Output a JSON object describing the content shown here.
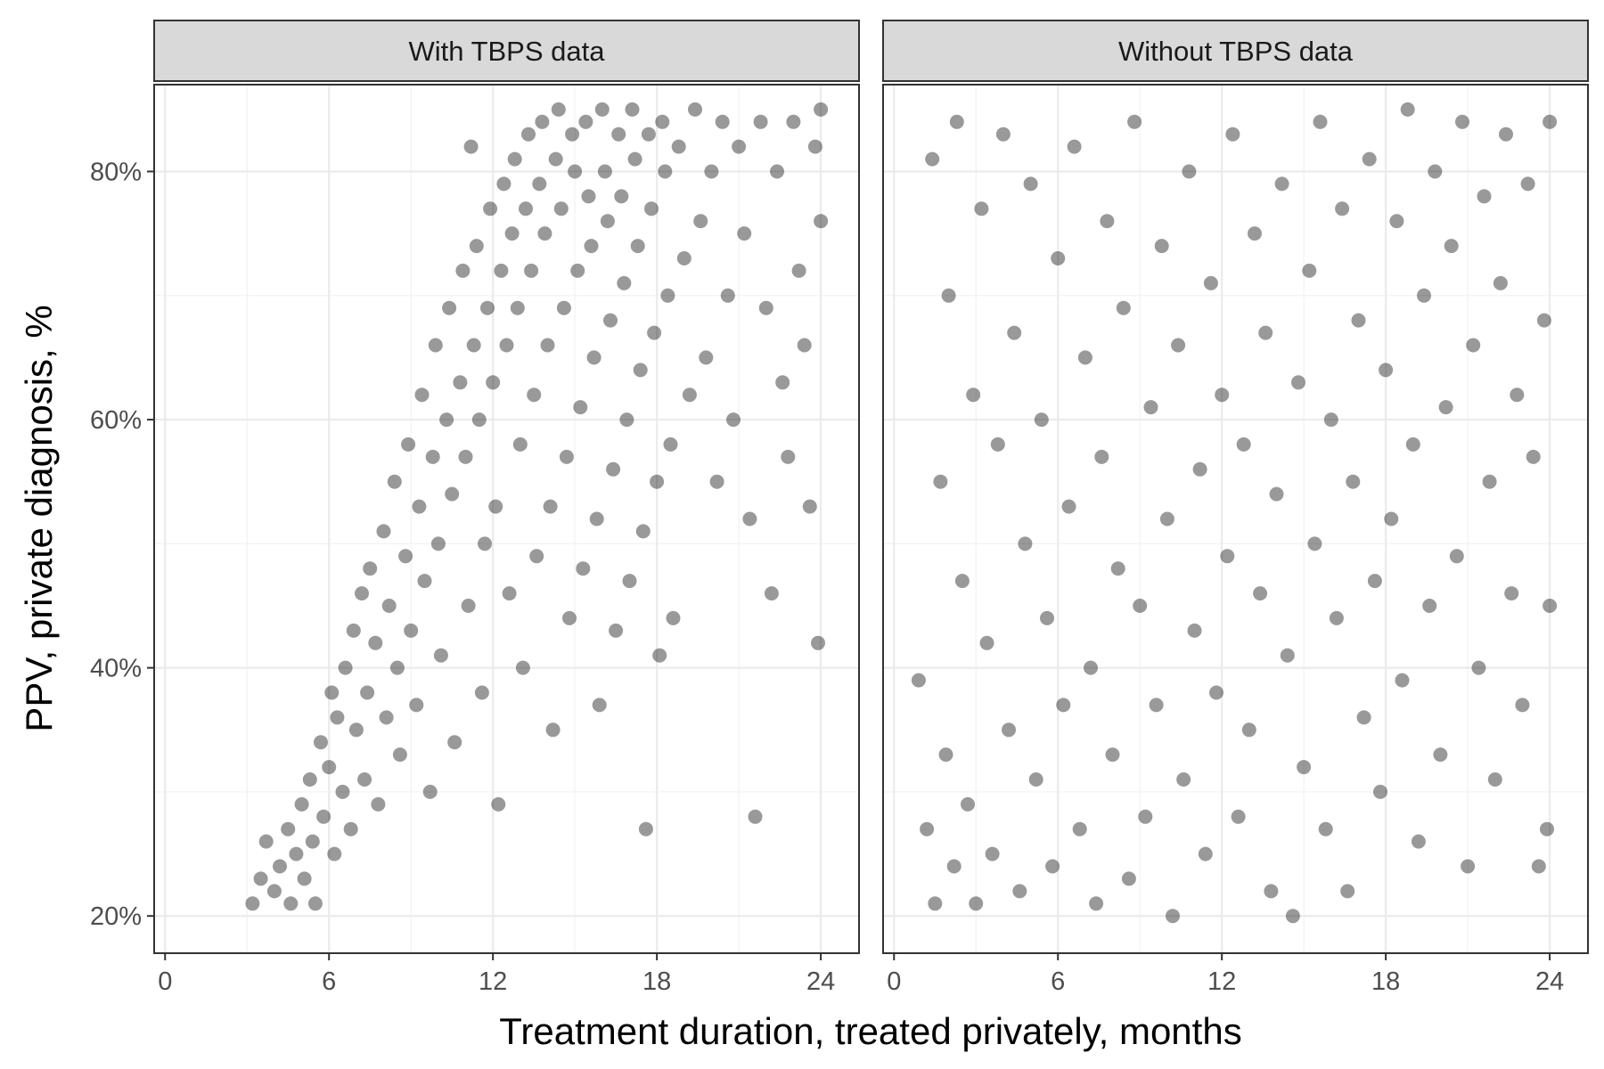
{
  "chart_data": {
    "type": "scatter",
    "xlabel": "Treatment duration, treated privately, months",
    "ylabel": "PPV, private diagnosis, %",
    "xlim": [
      -0.4,
      25.4
    ],
    "ylim": [
      0.17,
      0.87
    ],
    "x_ticks": [
      0,
      6,
      12,
      18,
      24
    ],
    "x_tick_labels": [
      "0",
      "6",
      "12",
      "18",
      "24"
    ],
    "y_ticks": [
      0.2,
      0.4,
      0.6,
      0.8
    ],
    "y_tick_labels": [
      "20%",
      "40%",
      "60%",
      "80%"
    ],
    "grid": true,
    "point_color": "#000000",
    "point_alpha": 0.4,
    "panels": [
      {
        "strip_label": "With TBPS data",
        "points": [
          [
            3.2,
            0.21
          ],
          [
            3.5,
            0.23
          ],
          [
            3.7,
            0.26
          ],
          [
            4.0,
            0.22
          ],
          [
            4.2,
            0.24
          ],
          [
            4.5,
            0.27
          ],
          [
            4.6,
            0.21
          ],
          [
            4.8,
            0.25
          ],
          [
            5.0,
            0.29
          ],
          [
            5.1,
            0.23
          ],
          [
            5.3,
            0.31
          ],
          [
            5.4,
            0.26
          ],
          [
            5.5,
            0.21
          ],
          [
            5.7,
            0.34
          ],
          [
            5.8,
            0.28
          ],
          [
            6.0,
            0.32
          ],
          [
            6.1,
            0.38
          ],
          [
            6.2,
            0.25
          ],
          [
            6.3,
            0.36
          ],
          [
            6.5,
            0.3
          ],
          [
            6.6,
            0.4
          ],
          [
            6.8,
            0.27
          ],
          [
            6.9,
            0.43
          ],
          [
            7.0,
            0.35
          ],
          [
            7.2,
            0.46
          ],
          [
            7.3,
            0.31
          ],
          [
            7.4,
            0.38
          ],
          [
            7.5,
            0.48
          ],
          [
            7.7,
            0.42
          ],
          [
            7.8,
            0.29
          ],
          [
            8.0,
            0.51
          ],
          [
            8.1,
            0.36
          ],
          [
            8.2,
            0.45
          ],
          [
            8.4,
            0.55
          ],
          [
            8.5,
            0.4
          ],
          [
            8.6,
            0.33
          ],
          [
            8.8,
            0.49
          ],
          [
            8.9,
            0.58
          ],
          [
            9.0,
            0.43
          ],
          [
            9.2,
            0.37
          ],
          [
            9.3,
            0.53
          ],
          [
            9.4,
            0.62
          ],
          [
            9.5,
            0.47
          ],
          [
            9.7,
            0.3
          ],
          [
            9.8,
            0.57
          ],
          [
            9.9,
            0.66
          ],
          [
            10.0,
            0.5
          ],
          [
            10.1,
            0.41
          ],
          [
            10.3,
            0.6
          ],
          [
            10.4,
            0.69
          ],
          [
            10.5,
            0.54
          ],
          [
            10.6,
            0.34
          ],
          [
            10.8,
            0.63
          ],
          [
            10.9,
            0.72
          ],
          [
            11.0,
            0.57
          ],
          [
            11.1,
            0.45
          ],
          [
            11.2,
            0.82
          ],
          [
            11.3,
            0.66
          ],
          [
            11.4,
            0.74
          ],
          [
            11.5,
            0.6
          ],
          [
            11.6,
            0.38
          ],
          [
            11.7,
            0.5
          ],
          [
            11.8,
            0.69
          ],
          [
            11.9,
            0.77
          ],
          [
            12.0,
            0.63
          ],
          [
            12.1,
            0.53
          ],
          [
            12.2,
            0.29
          ],
          [
            12.3,
            0.72
          ],
          [
            12.4,
            0.79
          ],
          [
            12.5,
            0.66
          ],
          [
            12.6,
            0.46
          ],
          [
            12.7,
            0.75
          ],
          [
            12.8,
            0.81
          ],
          [
            12.9,
            0.69
          ],
          [
            13.0,
            0.58
          ],
          [
            13.1,
            0.4
          ],
          [
            13.2,
            0.77
          ],
          [
            13.3,
            0.83
          ],
          [
            13.4,
            0.72
          ],
          [
            13.5,
            0.62
          ],
          [
            13.6,
            0.49
          ],
          [
            13.7,
            0.79
          ],
          [
            13.8,
            0.84
          ],
          [
            13.9,
            0.75
          ],
          [
            14.0,
            0.66
          ],
          [
            14.1,
            0.53
          ],
          [
            14.2,
            0.35
          ],
          [
            14.3,
            0.81
          ],
          [
            14.4,
            0.85
          ],
          [
            14.5,
            0.77
          ],
          [
            14.6,
            0.69
          ],
          [
            14.7,
            0.57
          ],
          [
            14.8,
            0.44
          ],
          [
            14.9,
            0.83
          ],
          [
            15.0,
            0.8
          ],
          [
            15.1,
            0.72
          ],
          [
            15.2,
            0.61
          ],
          [
            15.3,
            0.48
          ],
          [
            15.4,
            0.84
          ],
          [
            15.5,
            0.78
          ],
          [
            15.6,
            0.74
          ],
          [
            15.7,
            0.65
          ],
          [
            15.8,
            0.52
          ],
          [
            15.9,
            0.37
          ],
          [
            16.0,
            0.85
          ],
          [
            16.1,
            0.8
          ],
          [
            16.2,
            0.76
          ],
          [
            16.3,
            0.68
          ],
          [
            16.4,
            0.56
          ],
          [
            16.5,
            0.43
          ],
          [
            16.6,
            0.83
          ],
          [
            16.7,
            0.78
          ],
          [
            16.8,
            0.71
          ],
          [
            16.9,
            0.6
          ],
          [
            17.0,
            0.47
          ],
          [
            17.1,
            0.85
          ],
          [
            17.2,
            0.81
          ],
          [
            17.3,
            0.74
          ],
          [
            17.4,
            0.64
          ],
          [
            17.5,
            0.51
          ],
          [
            17.6,
            0.27
          ],
          [
            17.7,
            0.83
          ],
          [
            17.8,
            0.77
          ],
          [
            17.9,
            0.67
          ],
          [
            18.0,
            0.55
          ],
          [
            18.1,
            0.41
          ],
          [
            18.2,
            0.84
          ],
          [
            18.3,
            0.8
          ],
          [
            18.4,
            0.7
          ],
          [
            18.5,
            0.58
          ],
          [
            18.6,
            0.44
          ],
          [
            18.8,
            0.82
          ],
          [
            19.0,
            0.73
          ],
          [
            19.2,
            0.62
          ],
          [
            19.4,
            0.85
          ],
          [
            19.6,
            0.76
          ],
          [
            19.8,
            0.65
          ],
          [
            20.0,
            0.8
          ],
          [
            20.2,
            0.55
          ],
          [
            20.4,
            0.84
          ],
          [
            20.6,
            0.7
          ],
          [
            20.8,
            0.6
          ],
          [
            21.0,
            0.82
          ],
          [
            21.2,
            0.75
          ],
          [
            21.4,
            0.52
          ],
          [
            21.6,
            0.28
          ],
          [
            21.8,
            0.84
          ],
          [
            22.0,
            0.69
          ],
          [
            22.2,
            0.46
          ],
          [
            22.4,
            0.8
          ],
          [
            22.6,
            0.63
          ],
          [
            22.8,
            0.57
          ],
          [
            23.0,
            0.84
          ],
          [
            23.2,
            0.72
          ],
          [
            23.4,
            0.66
          ],
          [
            23.6,
            0.53
          ],
          [
            23.8,
            0.82
          ],
          [
            24.0,
            0.76
          ],
          [
            24.0,
            0.85
          ],
          [
            23.9,
            0.42
          ]
        ]
      },
      {
        "strip_label": "Without TBPS data",
        "points": [
          [
            0.9,
            0.39
          ],
          [
            1.2,
            0.27
          ],
          [
            1.4,
            0.81
          ],
          [
            1.5,
            0.21
          ],
          [
            1.7,
            0.55
          ],
          [
            1.9,
            0.33
          ],
          [
            2.0,
            0.7
          ],
          [
            2.2,
            0.24
          ],
          [
            2.3,
            0.84
          ],
          [
            2.5,
            0.47
          ],
          [
            2.7,
            0.29
          ],
          [
            2.9,
            0.62
          ],
          [
            3.0,
            0.21
          ],
          [
            3.2,
            0.77
          ],
          [
            3.4,
            0.42
          ],
          [
            3.6,
            0.25
          ],
          [
            3.8,
            0.58
          ],
          [
            4.0,
            0.83
          ],
          [
            4.2,
            0.35
          ],
          [
            4.4,
            0.67
          ],
          [
            4.6,
            0.22
          ],
          [
            4.8,
            0.5
          ],
          [
            5.0,
            0.79
          ],
          [
            5.2,
            0.31
          ],
          [
            5.4,
            0.6
          ],
          [
            5.6,
            0.44
          ],
          [
            5.8,
            0.24
          ],
          [
            6.0,
            0.73
          ],
          [
            6.2,
            0.37
          ],
          [
            6.4,
            0.53
          ],
          [
            6.6,
            0.82
          ],
          [
            6.8,
            0.27
          ],
          [
            7.0,
            0.65
          ],
          [
            7.2,
            0.4
          ],
          [
            7.4,
            0.21
          ],
          [
            7.6,
            0.57
          ],
          [
            7.8,
            0.76
          ],
          [
            8.0,
            0.33
          ],
          [
            8.2,
            0.48
          ],
          [
            8.4,
            0.69
          ],
          [
            8.6,
            0.23
          ],
          [
            8.8,
            0.84
          ],
          [
            9.0,
            0.45
          ],
          [
            9.2,
            0.28
          ],
          [
            9.4,
            0.61
          ],
          [
            9.6,
            0.37
          ],
          [
            9.8,
            0.74
          ],
          [
            10.0,
            0.52
          ],
          [
            10.2,
            0.2
          ],
          [
            10.4,
            0.66
          ],
          [
            10.6,
            0.31
          ],
          [
            10.8,
            0.8
          ],
          [
            11.0,
            0.43
          ],
          [
            11.2,
            0.56
          ],
          [
            11.4,
            0.25
          ],
          [
            11.6,
            0.71
          ],
          [
            11.8,
            0.38
          ],
          [
            12.0,
            0.62
          ],
          [
            12.2,
            0.49
          ],
          [
            12.4,
            0.83
          ],
          [
            12.6,
            0.28
          ],
          [
            12.8,
            0.58
          ],
          [
            13.0,
            0.35
          ],
          [
            13.2,
            0.75
          ],
          [
            13.4,
            0.46
          ],
          [
            13.6,
            0.67
          ],
          [
            13.8,
            0.22
          ],
          [
            14.0,
            0.54
          ],
          [
            14.2,
            0.79
          ],
          [
            14.4,
            0.41
          ],
          [
            14.6,
            0.2
          ],
          [
            14.8,
            0.63
          ],
          [
            15.0,
            0.32
          ],
          [
            15.2,
            0.72
          ],
          [
            15.4,
            0.5
          ],
          [
            15.6,
            0.84
          ],
          [
            15.8,
            0.27
          ],
          [
            16.0,
            0.6
          ],
          [
            16.2,
            0.44
          ],
          [
            16.4,
            0.77
          ],
          [
            16.6,
            0.22
          ],
          [
            16.8,
            0.55
          ],
          [
            17.0,
            0.68
          ],
          [
            17.2,
            0.36
          ],
          [
            17.4,
            0.81
          ],
          [
            17.6,
            0.47
          ],
          [
            17.8,
            0.3
          ],
          [
            18.0,
            0.64
          ],
          [
            18.2,
            0.52
          ],
          [
            18.4,
            0.76
          ],
          [
            18.6,
            0.39
          ],
          [
            18.8,
            0.85
          ],
          [
            19.0,
            0.58
          ],
          [
            19.2,
            0.26
          ],
          [
            19.4,
            0.7
          ],
          [
            19.6,
            0.45
          ],
          [
            19.8,
            0.8
          ],
          [
            20.0,
            0.33
          ],
          [
            20.2,
            0.61
          ],
          [
            20.4,
            0.74
          ],
          [
            20.6,
            0.49
          ],
          [
            20.8,
            0.84
          ],
          [
            21.0,
            0.24
          ],
          [
            21.2,
            0.66
          ],
          [
            21.4,
            0.4
          ],
          [
            21.6,
            0.78
          ],
          [
            21.8,
            0.55
          ],
          [
            22.0,
            0.31
          ],
          [
            22.2,
            0.71
          ],
          [
            22.4,
            0.83
          ],
          [
            22.6,
            0.46
          ],
          [
            22.8,
            0.62
          ],
          [
            23.0,
            0.37
          ],
          [
            23.2,
            0.79
          ],
          [
            23.4,
            0.57
          ],
          [
            23.6,
            0.24
          ],
          [
            23.8,
            0.68
          ],
          [
            24.0,
            0.84
          ],
          [
            24.0,
            0.45
          ],
          [
            23.9,
            0.27
          ]
        ]
      }
    ]
  }
}
